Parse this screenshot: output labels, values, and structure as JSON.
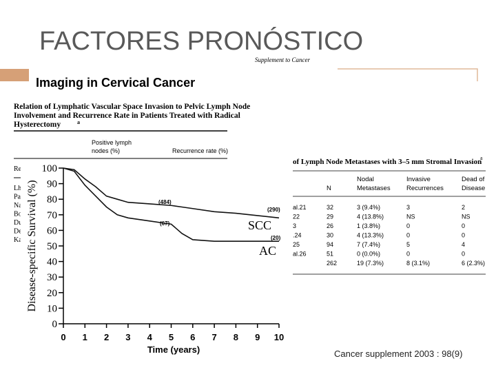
{
  "slide": {
    "title": "FACTORES PRONÓSTICO",
    "footer": "Cancer supplement  2003 : 98(9)"
  },
  "scan": {
    "running_head": "Supplement to Cancer",
    "heading": "Imaging in Cervical Cancer",
    "left_table": {
      "title_lines": [
        "Relation of Lymphatic Vascular Space Invasion to Pelvic Lymph Node",
        "Involvement and Recurrence Rate in Patients Treated with Radical",
        "Hysterectomy"
      ],
      "title_note": "a",
      "col1": [
        "Positive lymph",
        "nodes (%)"
      ],
      "col2": "Recurrence rate (%)",
      "stub_head": "Re",
      "stubs": [
        "Lh",
        "Pa",
        "Na",
        "Bo",
        "Du",
        "De",
        "Ka"
      ]
    },
    "right_table": {
      "title": "of Lymph Node Metastases with 3–5 mm Stromal Invasion",
      "title_note": "a",
      "headers": [
        "N",
        [
          "Nodal",
          "Metastases"
        ],
        [
          "Invasive",
          "Recurrences"
        ],
        [
          "Dead of",
          "Disease"
        ]
      ],
      "stubs": [
        "al.21",
        "22",
        "3",
        ".24",
        "25",
        "al.26"
      ],
      "rows": [
        [
          "32",
          "3 (9.4%)",
          "3",
          "2"
        ],
        [
          "29",
          "4 (13.8%)",
          "NS",
          "NS"
        ],
        [
          "26",
          "1 (3.8%)",
          "0",
          "0"
        ],
        [
          "30",
          "4 (13.3%)",
          "0",
          "0"
        ],
        [
          "94",
          "7 (7.4%)",
          "5",
          "4"
        ],
        [
          "51",
          "0 (0.0%)",
          "0",
          "0"
        ],
        [
          "262",
          "19 (7.3%)",
          "8 (3.1%)",
          "6 (2.3%)"
        ]
      ]
    }
  },
  "chart_data": {
    "type": "line",
    "x_label": "Time (years)",
    "y_label": "Disease-specific Survival (%)",
    "x": [
      0,
      0.5,
      1,
      1.5,
      2,
      2.5,
      3,
      4,
      5,
      5.5,
      6,
      7,
      8,
      9,
      10
    ],
    "series": [
      {
        "name": "SCC",
        "color": "#111111",
        "values": [
          100,
          99,
          93,
          88,
          82,
          80,
          78,
          77,
          76,
          75,
          74,
          72,
          71,
          69.5,
          68
        ]
      },
      {
        "name": "AC",
        "color": "#111111",
        "values": [
          100,
          98,
          89,
          82,
          75,
          70,
          68,
          66,
          64,
          58,
          54,
          53,
          53,
          53,
          53
        ]
      }
    ],
    "annotations": [
      "(484)",
      "(67)",
      "(290)",
      "(20)"
    ],
    "xlim": [
      0,
      10
    ],
    "xticks": [
      0,
      1,
      2,
      3,
      4,
      5,
      6,
      7,
      8,
      9,
      10
    ],
    "ylim": [
      0,
      100
    ],
    "yticks": [
      0,
      10,
      20,
      30,
      40,
      50,
      60,
      70,
      80,
      90,
      100
    ]
  }
}
